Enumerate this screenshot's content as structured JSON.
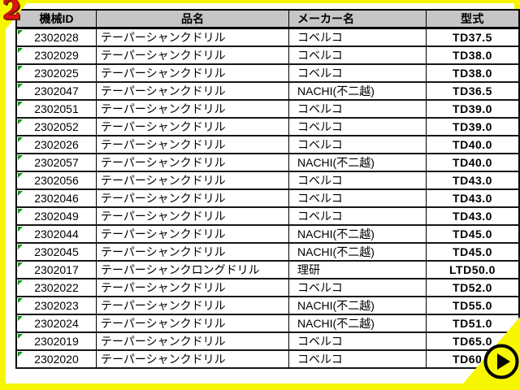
{
  "page": {
    "slide_number": "2"
  },
  "table": {
    "columns": [
      {
        "key": "id",
        "label": "機械ID"
      },
      {
        "key": "name",
        "label": "品名"
      },
      {
        "key": "maker",
        "label": "メーカー名"
      },
      {
        "key": "model",
        "label": "型式"
      }
    ],
    "rows": [
      {
        "id": "2302028",
        "name": "テーパーシャンクドリル",
        "maker": "コベルコ",
        "model": "TD37.5"
      },
      {
        "id": "2302029",
        "name": "テーパーシャンクドリル",
        "maker": "コベルコ",
        "model": "TD38.0"
      },
      {
        "id": "2302025",
        "name": "テーパーシャンクドリル",
        "maker": "コベルコ",
        "model": "TD38.0"
      },
      {
        "id": "2302047",
        "name": "テーパーシャンクドリル",
        "maker": "NACHI(不二越)",
        "model": "TD36.5"
      },
      {
        "id": "2302051",
        "name": "テーパーシャンクドリル",
        "maker": "コベルコ",
        "model": "TD39.0"
      },
      {
        "id": "2302052",
        "name": "テーパーシャンクドリル",
        "maker": "コベルコ",
        "model": "TD39.0"
      },
      {
        "id": "2302026",
        "name": "テーパーシャンクドリル",
        "maker": "コベルコ",
        "model": "TD40.0"
      },
      {
        "id": "2302057",
        "name": "テーパーシャンクドリル",
        "maker": "NACHI(不二越)",
        "model": "TD40.0"
      },
      {
        "id": "2302056",
        "name": "テーパーシャンクドリル",
        "maker": "コベルコ",
        "model": "TD43.0"
      },
      {
        "id": "2302046",
        "name": "テーパーシャンクドリル",
        "maker": "コベルコ",
        "model": "TD43.0"
      },
      {
        "id": "2302049",
        "name": "テーパーシャンクドリル",
        "maker": "コベルコ",
        "model": "TD43.0"
      },
      {
        "id": "2302044",
        "name": "テーパーシャンクドリル",
        "maker": "NACHI(不二越)",
        "model": "TD45.0"
      },
      {
        "id": "2302045",
        "name": "テーパーシャンクドリル",
        "maker": "NACHI(不二越)",
        "model": "TD45.0"
      },
      {
        "id": "2302017",
        "name": "テーパーシャンクロングドリル",
        "maker": "理研",
        "model": "LTD50.0"
      },
      {
        "id": "2302022",
        "name": "テーパーシャンクドリル",
        "maker": "コベルコ",
        "model": "TD52.0"
      },
      {
        "id": "2302023",
        "name": "テーパーシャンクドリル",
        "maker": "NACHI(不二越)",
        "model": "TD55.0"
      },
      {
        "id": "2302024",
        "name": "テーパーシャンクドリル",
        "maker": "NACHI(不二越)",
        "model": "TD51.0"
      },
      {
        "id": "2302019",
        "name": "テーパーシャンクドリル",
        "maker": "コベルコ",
        "model": "TD65.0"
      },
      {
        "id": "2302020",
        "name": "テーパーシャンクドリル",
        "maker": "コベルコ",
        "model": "TD60.0"
      }
    ]
  },
  "nav": {
    "next_icon": "play-right-icon"
  },
  "icons": {
    "cell_indicator": "green-corner-triangle"
  },
  "colors": {
    "frame": "#f6f600",
    "header_bg": "#c6c6c6",
    "indicator_green": "#149414",
    "slide_number_red": "#e01414",
    "border_black": "#000000"
  }
}
